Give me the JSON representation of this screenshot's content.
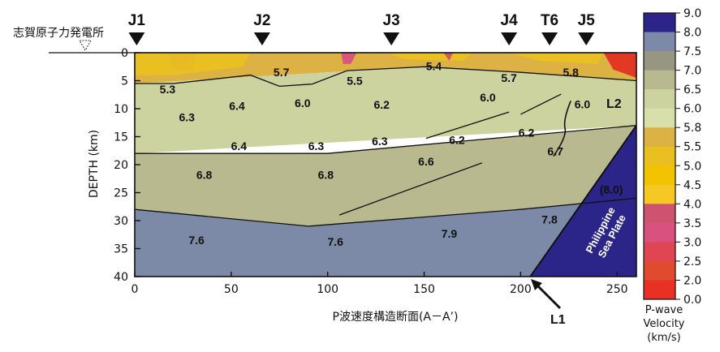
{
  "chart_data": {
    "type": "heatmap",
    "title": "",
    "xlabel": "P波速度構造断面(A－A’)",
    "ylabel": "DEPTH (km)",
    "xlim": [
      0,
      260
    ],
    "ylim": [
      40,
      0
    ],
    "xticks": [
      "0",
      "50",
      "100",
      "150",
      "200",
      "250"
    ],
    "xtick_values": [
      0,
      50,
      100,
      150,
      200,
      250
    ],
    "yticks": [
      "0",
      "5",
      "10",
      "15",
      "20",
      "25",
      "30",
      "35",
      "40"
    ],
    "ytick_values": [
      0,
      5,
      10,
      15,
      20,
      25,
      30,
      35,
      40
    ],
    "stations": [
      {
        "label": "J1",
        "x": 1
      },
      {
        "label": "J2",
        "x": 66
      },
      {
        "label": "J3",
        "x": 133
      },
      {
        "label": "J4",
        "x": 194
      },
      {
        "label": "T6",
        "x": 215
      },
      {
        "label": "J5",
        "x": 234
      }
    ],
    "site_label": "志賀原子力発電所",
    "layers": [
      {
        "name": "surface",
        "color": "#dcb244",
        "points": [
          [
            0,
            0
          ],
          [
            260,
            0
          ],
          [
            260,
            5
          ],
          [
            240,
            4.5
          ],
          [
            150,
            2.5
          ],
          [
            0,
            5.5
          ]
        ]
      },
      {
        "name": "upper-crust",
        "color": "#cdd39e",
        "points": [
          [
            0,
            5.5
          ],
          [
            150,
            2.5
          ],
          [
            240,
            4.5
          ],
          [
            260,
            5
          ],
          [
            260,
            13
          ],
          [
            0,
            18
          ]
        ]
      },
      {
        "name": "middle-crust",
        "color": "#b9b990",
        "points": [
          [
            0,
            18
          ],
          [
            100,
            18
          ],
          [
            170,
            15.8
          ],
          [
            260,
            13
          ],
          [
            260,
            40
          ],
          [
            0,
            40
          ]
        ]
      },
      {
        "name": "lower-crust",
        "color": "#7c8aa7",
        "points": [
          [
            0,
            28
          ],
          [
            90,
            31
          ],
          [
            200,
            28
          ],
          [
            260,
            26
          ],
          [
            260,
            40
          ],
          [
            0,
            40
          ]
        ]
      },
      {
        "name": "slab",
        "color": "#2b2589",
        "points": [
          [
            205,
            40
          ],
          [
            260,
            13
          ],
          [
            260,
            40
          ]
        ]
      }
    ],
    "red_pockets": [
      {
        "color": "#d8517f",
        "points": [
          [
            17,
            0
          ],
          [
            32,
            0
          ],
          [
            30,
            3
          ],
          [
            20,
            3
          ]
        ]
      },
      {
        "color": "#e9c020",
        "points": [
          [
            0,
            0
          ],
          [
            60,
            0
          ],
          [
            56,
            2.5
          ],
          [
            20,
            4
          ],
          [
            0,
            4
          ]
        ]
      },
      {
        "color": "#e9c020",
        "points": [
          [
            130,
            0
          ],
          [
            175,
            0
          ],
          [
            170,
            1.5
          ],
          [
            140,
            1.2
          ]
        ]
      },
      {
        "color": "#d8517f",
        "points": [
          [
            107,
            0
          ],
          [
            115,
            0
          ],
          [
            112,
            2
          ],
          [
            108,
            2
          ]
        ]
      },
      {
        "color": "#cf5270",
        "points": [
          [
            160,
            0
          ],
          [
            165,
            0
          ],
          [
            163,
            1.4
          ]
        ]
      },
      {
        "color": "#e13324",
        "points": [
          [
            243,
            0
          ],
          [
            260,
            0
          ],
          [
            260,
            4.5
          ],
          [
            248,
            3
          ]
        ]
      },
      {
        "color": "#e9c020",
        "points": [
          [
            195,
            0
          ],
          [
            243,
            0
          ],
          [
            240,
            2
          ],
          [
            210,
            1.5
          ]
        ]
      }
    ],
    "annotations": [
      {
        "text": "5.3",
        "x": 17,
        "y": 6.5
      },
      {
        "text": "6.3",
        "x": 27,
        "y": 11.5
      },
      {
        "text": "6.4",
        "x": 53,
        "y": 9.5
      },
      {
        "text": "5.7",
        "x": 76,
        "y": 3.5
      },
      {
        "text": "6.0",
        "x": 87,
        "y": 9
      },
      {
        "text": "5.5",
        "x": 114,
        "y": 5
      },
      {
        "text": "6.2",
        "x": 128,
        "y": 9.3
      },
      {
        "text": "5.4",
        "x": 155,
        "y": 2.4
      },
      {
        "text": "5.7",
        "x": 194,
        "y": 4.5
      },
      {
        "text": "6.0",
        "x": 183,
        "y": 8
      },
      {
        "text": "5.8",
        "x": 226,
        "y": 3.5
      },
      {
        "text": "6.0",
        "x": 232,
        "y": 9.2
      },
      {
        "text": "6.4",
        "x": 54,
        "y": 16.7
      },
      {
        "text": "6.3",
        "x": 94,
        "y": 16.7
      },
      {
        "text": "6.3",
        "x": 127,
        "y": 15.8
      },
      {
        "text": "6.2",
        "x": 167,
        "y": 15.6
      },
      {
        "text": "6.2",
        "x": 203,
        "y": 14.3
      },
      {
        "text": "6.7",
        "x": 218,
        "y": 17.6
      },
      {
        "text": "6.6",
        "x": 151,
        "y": 19.4
      },
      {
        "text": "6.8",
        "x": 36,
        "y": 21.8
      },
      {
        "text": "6.8",
        "x": 99,
        "y": 21.8
      },
      {
        "text": "7.6",
        "x": 32,
        "y": 33.5
      },
      {
        "text": "7.6",
        "x": 104,
        "y": 33.8
      },
      {
        "text": "7.9",
        "x": 163,
        "y": 32.3
      },
      {
        "text": "7.8",
        "x": 215,
        "y": 29.8
      },
      {
        "text": "(8.0)",
        "x": 247,
        "y": 24.4
      }
    ],
    "plate_label": [
      "Philippine",
      "Sea Plate"
    ],
    "reflectors": [
      [
        [
          151,
          15.3
        ],
        [
          194,
          10.6
        ]
      ],
      [
        [
          200,
          11
        ],
        [
          221,
          7.4
        ]
      ],
      [
        [
          106,
          29
        ],
        [
          180,
          19.7
        ]
      ]
    ],
    "fault_labels": [
      {
        "text": "L1"
      },
      {
        "text": "L2"
      }
    ],
    "colorbar": {
      "labels": [
        "9.0",
        "8.0",
        "7.5",
        "7.0",
        "6.5",
        "6.0",
        "5.8",
        "5.5",
        "5.0",
        "4.5",
        "4.0",
        "3.5",
        "3.0",
        "2.5",
        "2.0",
        "0.0"
      ],
      "colors": [
        "#2b2589",
        "#7c8aa7",
        "#969683",
        "#b9b990",
        "#cdd39e",
        "#d8e0a9",
        "#dcb244",
        "#e9c020",
        "#f3c200",
        "#f5c823",
        "#cf5270",
        "#d8517f",
        "#e04553",
        "#e04b2f",
        "#e83124"
      ],
      "title": [
        "P-wave",
        "Velocity",
        "(km/s)"
      ]
    }
  }
}
